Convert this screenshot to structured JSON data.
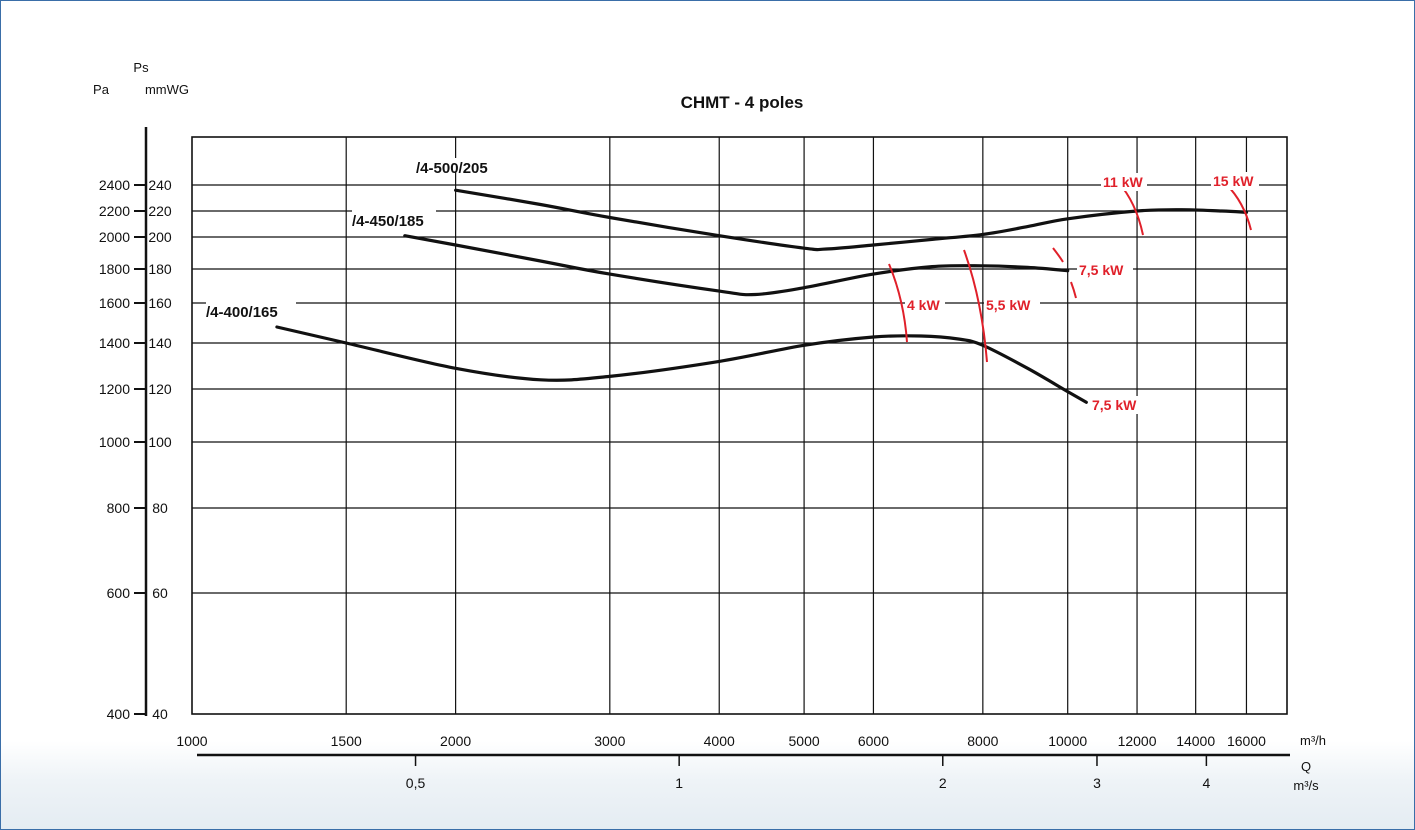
{
  "chart_data": {
    "type": "line",
    "title": "CHMT  -  4 poles",
    "y_axis_pa": {
      "label": "Pa",
      "ticks": [
        400,
        600,
        800,
        1000,
        1200,
        1400,
        1600,
        1800,
        2000,
        2200,
        2400
      ],
      "tick_labels": [
        "400",
        "600",
        "800",
        "1000",
        "1200",
        "1400",
        "1600",
        "1800",
        "2000",
        "2200",
        "2400"
      ]
    },
    "y_axis_mmwg": {
      "label_top": "Ps",
      "label": "mmWG",
      "ticks": [
        40,
        60,
        80,
        100,
        120,
        140,
        160,
        180,
        200,
        220,
        240
      ],
      "tick_labels": [
        "40",
        "60",
        "80",
        "100",
        "120",
        "140",
        "160",
        "180",
        "200",
        "220",
        "240"
      ]
    },
    "x_axis_m3h": {
      "unit": "m³/h",
      "scale": "log",
      "range": [
        1000,
        18000
      ],
      "ticks": [
        1000,
        1500,
        2000,
        3000,
        4000,
        5000,
        6000,
        8000,
        10000,
        12000,
        14000,
        16000
      ],
      "tick_labels": [
        "1000",
        "1500",
        "2000",
        "3000",
        "4000",
        "5000",
        "6000",
        "8000",
        "10000",
        "12000",
        "14000",
        "16000"
      ]
    },
    "x_axis_m3s": {
      "label_top": "Q",
      "unit": "m³/s",
      "ticks": [
        0.5,
        1,
        2,
        3,
        4
      ],
      "tick_labels": [
        "0,5",
        "1",
        "2",
        "3",
        "4"
      ]
    },
    "series": [
      {
        "name": "/4-400/165",
        "points": [
          [
            1250,
            1480
          ],
          [
            1500,
            1400
          ],
          [
            2000,
            1290
          ],
          [
            2500,
            1240
          ],
          [
            3000,
            1255
          ],
          [
            4000,
            1320
          ],
          [
            5000,
            1390
          ],
          [
            6000,
            1430
          ],
          [
            6800,
            1435
          ],
          [
            7500,
            1420
          ],
          [
            8000,
            1390
          ],
          [
            9000,
            1290
          ],
          [
            10000,
            1190
          ],
          [
            10500,
            1150
          ]
        ]
      },
      {
        "name": "/4-450/185",
        "points": [
          [
            1750,
            2010
          ],
          [
            2000,
            1950
          ],
          [
            2500,
            1850
          ],
          [
            3000,
            1770
          ],
          [
            4000,
            1670
          ],
          [
            4400,
            1650
          ],
          [
            5000,
            1690
          ],
          [
            6000,
            1770
          ],
          [
            7000,
            1815
          ],
          [
            8000,
            1820
          ],
          [
            9000,
            1810
          ],
          [
            10000,
            1790
          ]
        ]
      },
      {
        "name": "/4-500/205",
        "points": [
          [
            2000,
            2360
          ],
          [
            2500,
            2250
          ],
          [
            3000,
            2150
          ],
          [
            4000,
            2010
          ],
          [
            5000,
            1930
          ],
          [
            5300,
            1925
          ],
          [
            6000,
            1950
          ],
          [
            7000,
            1985
          ],
          [
            8000,
            2020
          ],
          [
            9000,
            2080
          ],
          [
            10000,
            2140
          ],
          [
            12000,
            2200
          ],
          [
            13500,
            2210
          ],
          [
            15000,
            2200
          ],
          [
            16000,
            2190
          ]
        ]
      }
    ],
    "power_labels": [
      {
        "text": "4 kW"
      },
      {
        "text": "5,5 kW"
      },
      {
        "text": "7,5 kW",
        "series": "/4-450/185"
      },
      {
        "text": "7,5 kW",
        "series": "/4-400/165"
      },
      {
        "text": "11 kW"
      },
      {
        "text": "15 kW"
      }
    ],
    "grid": true,
    "colors": {
      "curve": "#111111",
      "power": "#e0202a",
      "border": "#3a6ea8"
    }
  }
}
